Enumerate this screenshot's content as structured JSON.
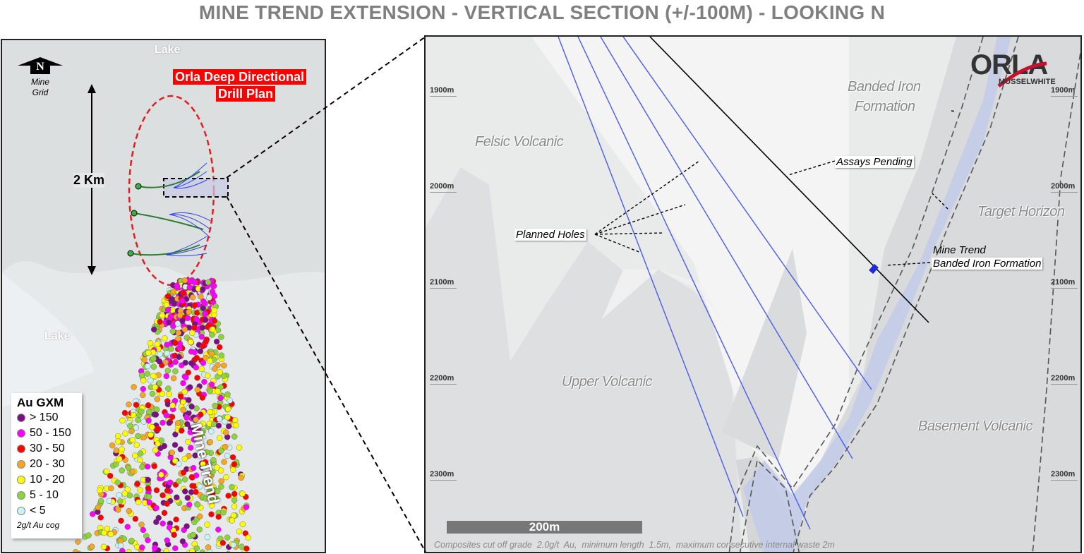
{
  "title": "MINE TREND EXTENSION - VERTICAL SECTION (+/-100M) - LOOKING N",
  "plan_map": {
    "north_label": "N",
    "north_caption": "Mine Grid",
    "lake_labels": [
      "Lake",
      "Lake"
    ],
    "drill_plan_label_line1": "Orla Deep Directional",
    "drill_plan_label_line2": "Drill Plan",
    "scale_label": "2 Km",
    "mine_trend_label": "Mine Trend",
    "legend": {
      "title": "Au GXM",
      "items": [
        {
          "label": "> 150",
          "color": "#7b0f86"
        },
        {
          "label": "50 - 150",
          "color": "#ff00ff"
        },
        {
          "label": "30 - 50",
          "color": "#ff0000"
        },
        {
          "label": "20 - 30",
          "color": "#f5a623"
        },
        {
          "label": "10 - 20",
          "color": "#ffff00"
        },
        {
          "label": "5 - 10",
          "color": "#8dd43c"
        },
        {
          "label": "< 5",
          "color": "#c8f4f8"
        }
      ],
      "note": "2g/t Au cog"
    }
  },
  "section": {
    "logo_text": "ORLA",
    "logo_subtext": "MUSSELWHITE",
    "depths": [
      "1900m",
      "2000m",
      "2100m",
      "2200m",
      "2300m"
    ],
    "units": {
      "felsic": "Felsic Volcanic",
      "upper": "Upper Volcanic",
      "basement": "Basement Volcanic",
      "bif_line1": "Banded Iron",
      "bif_line2": "Formation",
      "target": "Target Horizon"
    },
    "callouts": {
      "planned": "Planned Holes",
      "assays": "Assays Pending",
      "mine_trend_line1": "Mine Trend",
      "mine_trend_line2": "Banded Iron Formation"
    },
    "scale_bar": "200m",
    "footnote": "Composites cut off grade  2.0g/t  Au,  minimum length  1.5m,  maximum consecutive internal waste 2m",
    "colors": {
      "planned_hole": "#4a5cf0",
      "bif": "#c3cbe8",
      "intercept": "#1f2bd6"
    }
  }
}
